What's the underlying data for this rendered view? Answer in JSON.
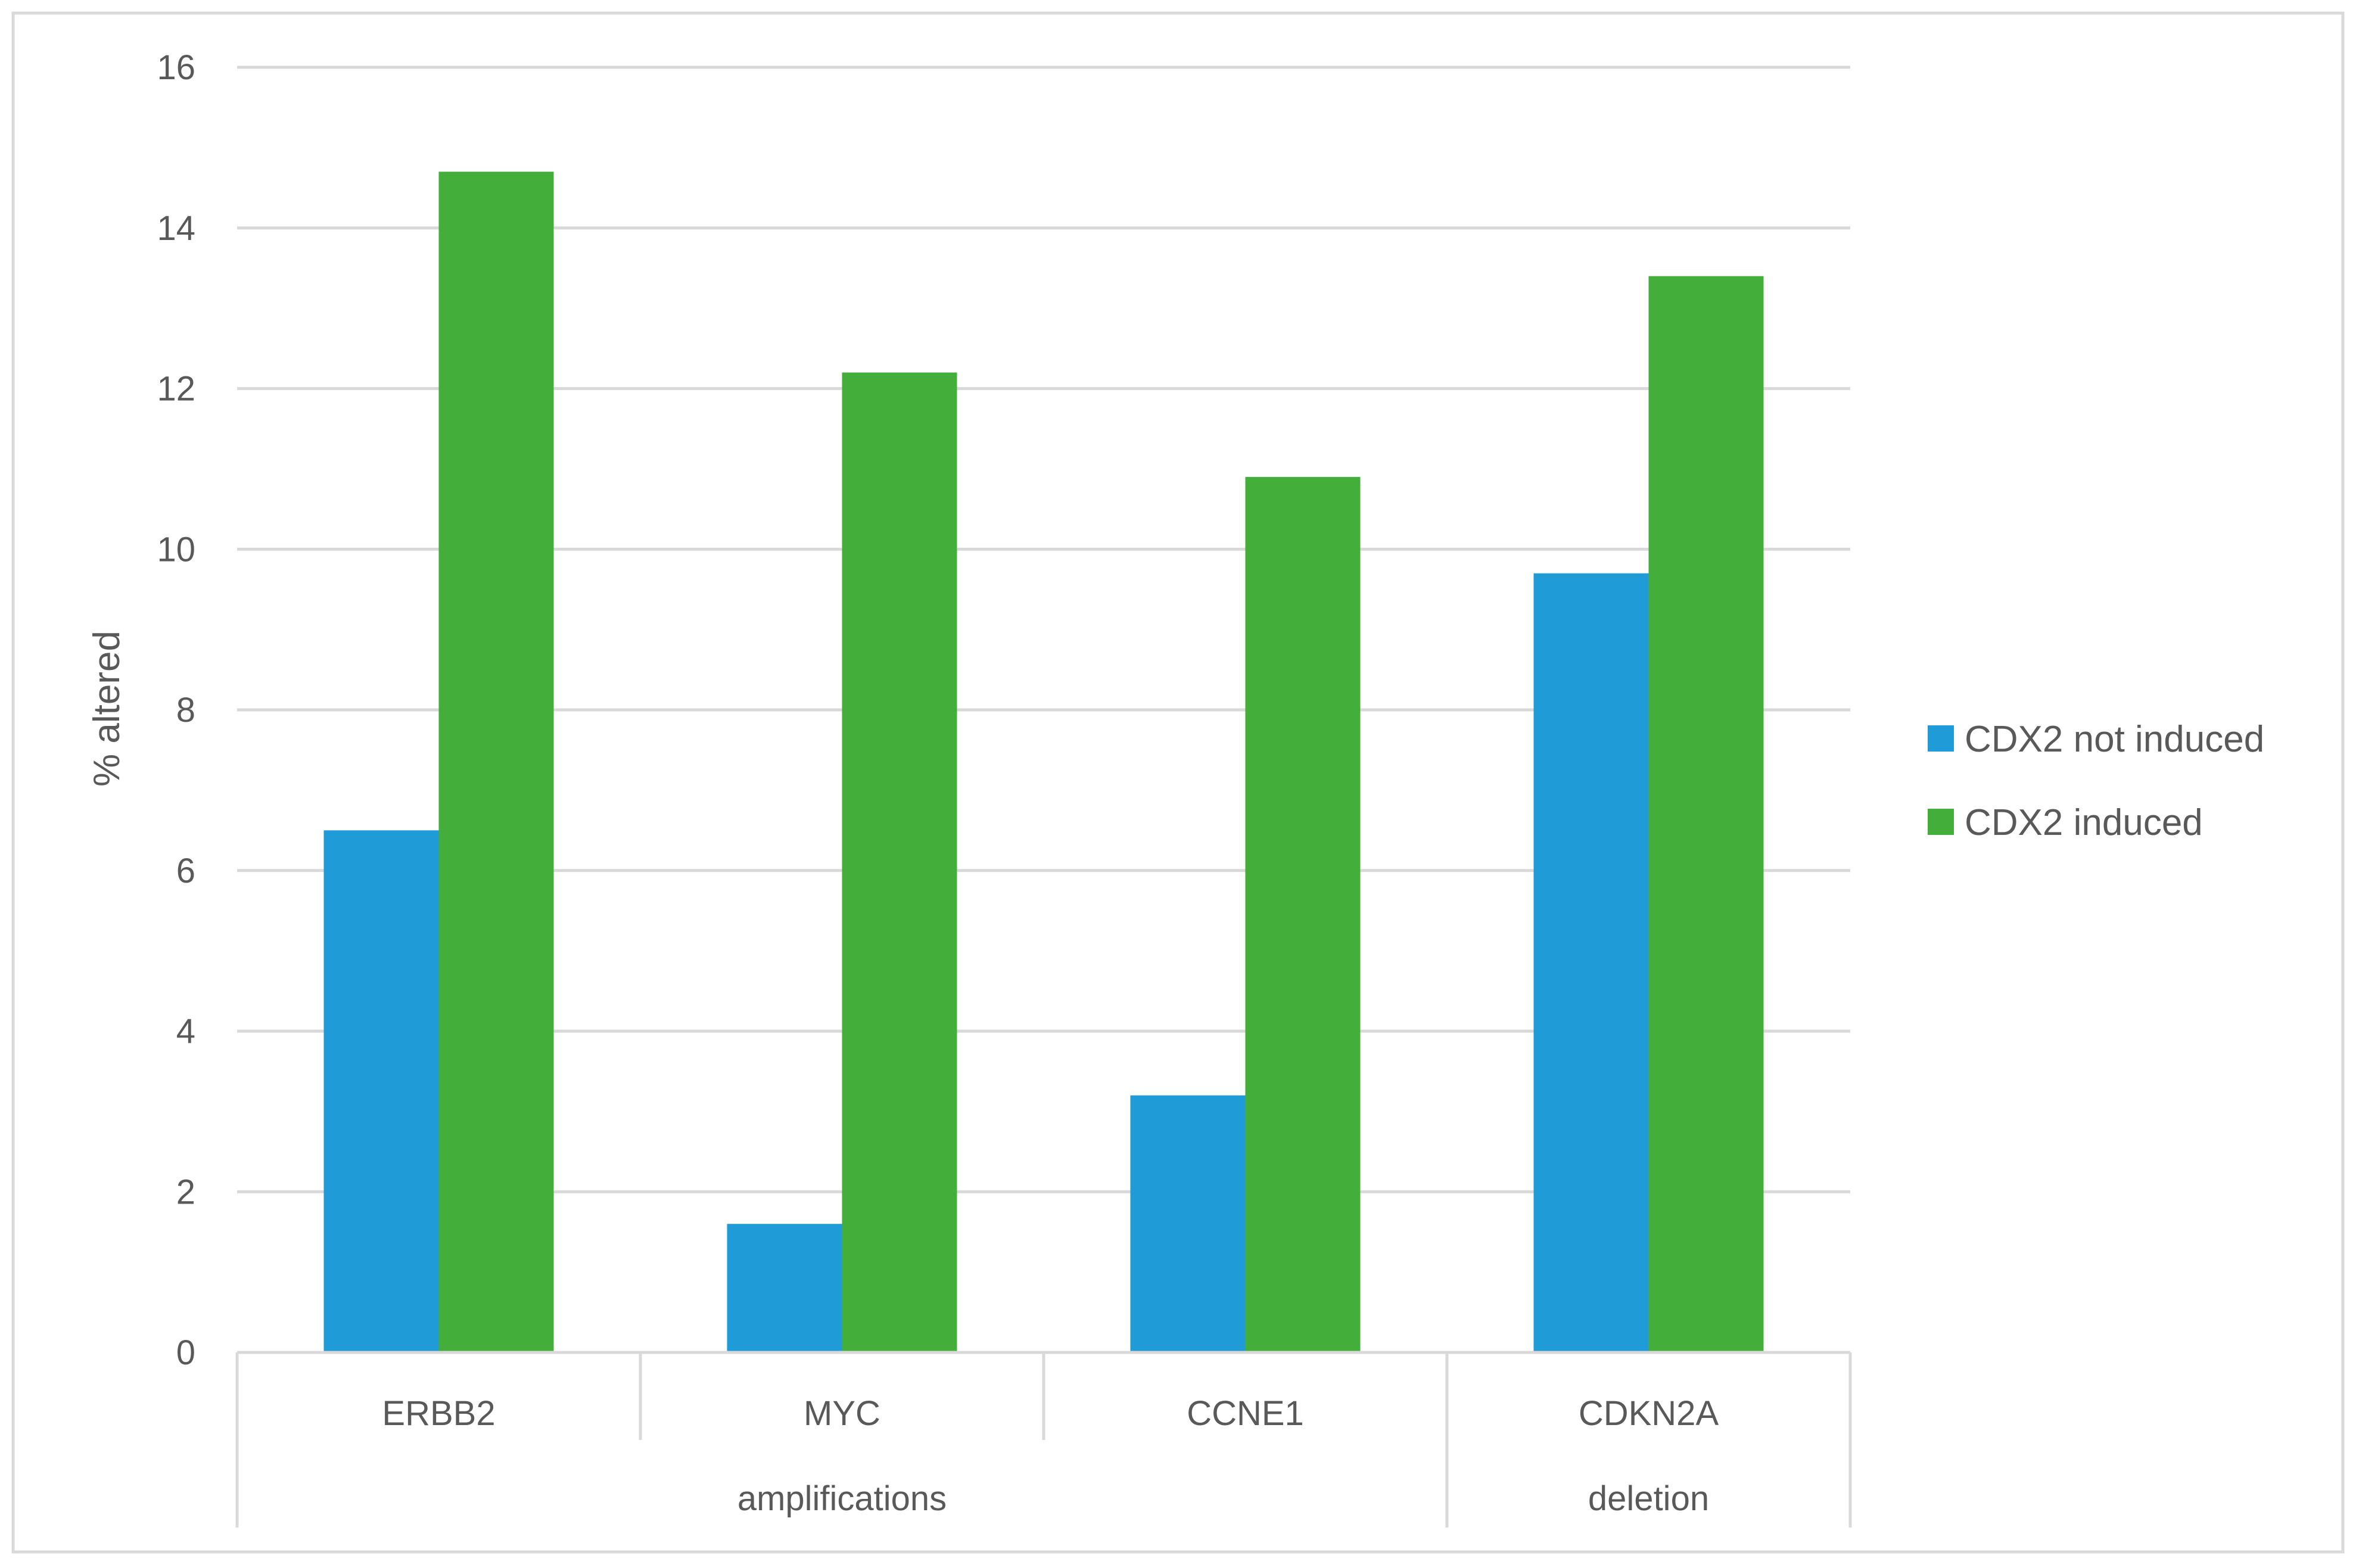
{
  "chart_data": {
    "type": "bar",
    "title": "",
    "xlabel": "",
    "ylabel": "% altered",
    "ylim": [
      0,
      16
    ],
    "yticks": [
      0,
      2,
      4,
      6,
      8,
      10,
      12,
      14,
      16
    ],
    "grid": true,
    "legend_position": "right",
    "categories": [
      "ERBB2",
      "MYC",
      "CCNE1",
      "CDKN2A"
    ],
    "groups": [
      {
        "label": "amplifications",
        "categories": [
          "ERBB2",
          "MYC",
          "CCNE1"
        ]
      },
      {
        "label": "deletion",
        "categories": [
          "CDKN2A"
        ]
      }
    ],
    "series": [
      {
        "name": "CDX2 not induced",
        "color": "#1f9bd7",
        "values": [
          6.5,
          1.6,
          3.2,
          9.7
        ]
      },
      {
        "name": "CDX2 induced",
        "color": "#44ae3b",
        "values": [
          14.7,
          12.2,
          10.9,
          13.4
        ]
      }
    ]
  }
}
